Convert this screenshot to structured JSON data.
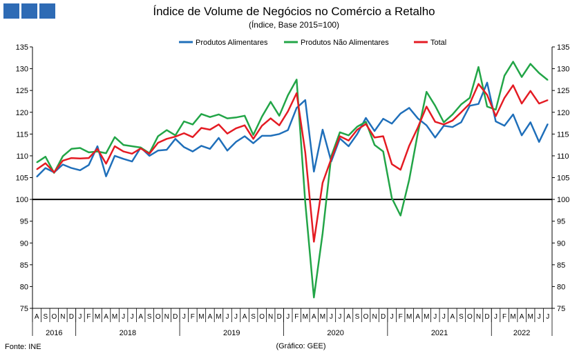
{
  "title": "Índice de Volume de Negócios no Comércio a Retalho",
  "subtitle": "(Índice, Base 2015=100)",
  "source": "Fonte: INE",
  "credit": "(Gráfico: GEE)",
  "chart_data": {
    "type": "line",
    "ylim": [
      75,
      135
    ],
    "yticks": [
      75,
      80,
      85,
      90,
      95,
      100,
      105,
      110,
      115,
      120,
      125,
      130,
      135
    ],
    "reference_line": 100,
    "legend_position": "top-center",
    "month_labels": [
      "A",
      "S",
      "O",
      "N",
      "D",
      "J",
      "F",
      "M",
      "A",
      "M",
      "J",
      "J",
      "A",
      "S",
      "O",
      "N",
      "D",
      "J",
      "F",
      "M",
      "A",
      "M",
      "J",
      "J",
      "A",
      "S",
      "O",
      "N",
      "D",
      "J",
      "F",
      "M",
      "A",
      "M",
      "J",
      "J",
      "A",
      "S",
      "O",
      "N",
      "D",
      "J",
      "F",
      "M",
      "A",
      "M",
      "J",
      "J",
      "A",
      "S",
      "O",
      "N",
      "D",
      "J",
      "F",
      "M",
      "A",
      "M",
      "J",
      "J"
    ],
    "year_labels": [
      {
        "label": "2016",
        "start": 0,
        "end": 4
      },
      {
        "label": "2018",
        "start": 5,
        "end": 16
      },
      {
        "label": "2019",
        "start": 17,
        "end": 28
      },
      {
        "label": "2020",
        "start": 29,
        "end": 40
      },
      {
        "label": "2021",
        "start": 41,
        "end": 52
      },
      {
        "label": "2022",
        "start": 53,
        "end": 59
      }
    ],
    "series": [
      {
        "name": "Produtos Alimentares",
        "color": "#1f6fba",
        "values": [
          105.2,
          107.2,
          106.2,
          108.0,
          107.2,
          106.7,
          107.9,
          112.2,
          105.3,
          110.0,
          109.3,
          108.7,
          111.9,
          110.0,
          111.2,
          111.4,
          113.9,
          112.0,
          111.0,
          112.3,
          111.6,
          114.1,
          111.2,
          113.2,
          114.5,
          112.9,
          114.6,
          114.6,
          115.0,
          115.9,
          121.0,
          122.8,
          106.4,
          116.0,
          108.7,
          114.0,
          112.2,
          115.0,
          118.7,
          115.7,
          118.5,
          117.4,
          119.7,
          121.0,
          118.6,
          117.0,
          114.2,
          116.9,
          116.6,
          117.7,
          121.5,
          121.9,
          126.8,
          117.9,
          116.9,
          119.5,
          114.7,
          117.7,
          113.2,
          117.3
        ]
      },
      {
        "name": "Produtos Não Alimentares",
        "color": "#22a547",
        "values": [
          108.5,
          109.8,
          106.1,
          109.9,
          111.6,
          111.8,
          110.8,
          111.0,
          110.6,
          114.3,
          112.5,
          112.2,
          111.9,
          110.6,
          114.5,
          115.9,
          114.7,
          117.9,
          117.2,
          119.6,
          118.9,
          119.5,
          118.6,
          118.8,
          119.2,
          114.8,
          119.0,
          122.4,
          119.2,
          123.9,
          127.5,
          99.3,
          77.5,
          92.2,
          109.9,
          115.4,
          114.7,
          116.7,
          117.8,
          112.5,
          111.0,
          100.3,
          96.3,
          104.5,
          115.2,
          124.7,
          121.5,
          117.7,
          119.5,
          121.8,
          123.3,
          130.4,
          121.3,
          120.6,
          128.4,
          131.6,
          128.1,
          131.1,
          129.0,
          127.4
        ]
      },
      {
        "name": "Total",
        "color": "#e41b23",
        "values": [
          106.9,
          108.3,
          106.2,
          108.9,
          109.5,
          109.4,
          109.5,
          111.6,
          108.2,
          112.2,
          111.0,
          110.5,
          111.7,
          110.5,
          113.0,
          113.9,
          114.4,
          115.2,
          114.3,
          116.4,
          116.0,
          117.2,
          115.1,
          116.3,
          117.0,
          113.9,
          116.9,
          118.6,
          117.0,
          120.2,
          124.4,
          110.8,
          90.3,
          103.8,
          109.3,
          114.5,
          113.5,
          116.0,
          117.3,
          114.2,
          114.5,
          108.1,
          106.8,
          112.3,
          116.5,
          121.3,
          117.8,
          117.2,
          118.1,
          120.0,
          122.0,
          126.5,
          124.0,
          119.1,
          123.3,
          126.2,
          122.0,
          124.9,
          122.0,
          122.8
        ]
      }
    ]
  }
}
